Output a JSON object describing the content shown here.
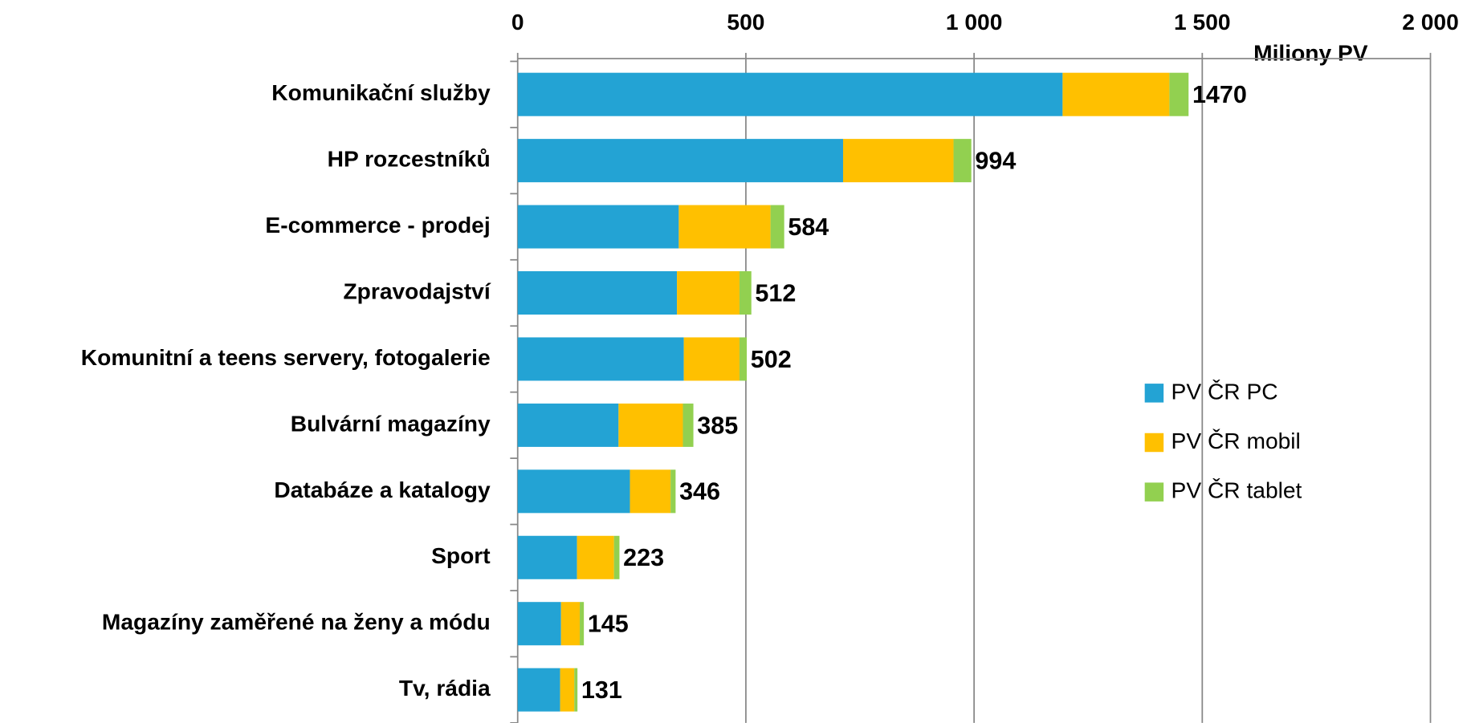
{
  "chart_data": {
    "type": "stacked_bar_horizontal",
    "x_axis_label": "Miliony PV",
    "categories": [
      "Komunikační služby",
      "HP rozcestníků",
      "E-commerce - prodej",
      "Zpravodajství",
      "Komunitní a teens servery, fotogalerie",
      "Bulvární magazíny",
      "Databáze a katalogy",
      "Sport",
      "Magazíny zaměřené na ženy a módu",
      "Tv, rádia"
    ],
    "series": [
      {
        "name": "PV ČR PC",
        "color": "#23a3d4",
        "values": [
          1194,
          713,
          353,
          349,
          364,
          221,
          246,
          130,
          95,
          93
        ]
      },
      {
        "name": "PV ČR mobil",
        "color": "#ffc000",
        "values": [
          234,
          242,
          201,
          137,
          122,
          141,
          89,
          81,
          41,
          31
        ]
      },
      {
        "name": "PV ČR tablet",
        "color": "#92d050",
        "values": [
          42,
          39,
          30,
          26,
          16,
          23,
          11,
          12,
          9,
          7
        ]
      }
    ],
    "totals": [
      1470,
      994,
      584,
      512,
      502,
      385,
      346,
      223,
      145,
      131
    ],
    "xlim": [
      0,
      2000
    ],
    "xticks": [
      0,
      500,
      {
        "value": 1000,
        "label": "1 000"
      },
      {
        "value": 1500,
        "label": "1 500"
      },
      {
        "value": 2000,
        "label": "2 000"
      }
    ],
    "grid": true,
    "legend": "right"
  }
}
